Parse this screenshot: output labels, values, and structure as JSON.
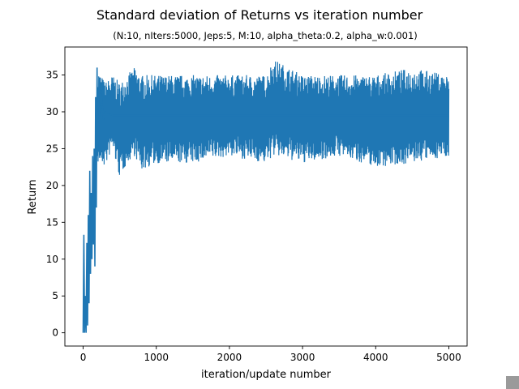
{
  "chart_data": {
    "type": "line",
    "title": "Standard deviation of Returns vs iteration number",
    "subtitle": "(N:10, nIters:5000, Jeps:5, M:10, alpha_theta:0.2, alpha_w:0.001)",
    "xlabel": "iteration/update number",
    "ylabel": "Return",
    "xlim": [
      -250,
      5250
    ],
    "ylim": [
      -1.8,
      38.8
    ],
    "xticks": [
      0,
      1000,
      2000,
      3000,
      4000,
      5000
    ],
    "yticks": [
      0,
      5,
      10,
      15,
      20,
      25,
      30,
      35
    ],
    "grid": false,
    "series": [
      {
        "color": "#1f77b4",
        "x": [
          0,
          10,
          20,
          30,
          40,
          50,
          60,
          70,
          80,
          90,
          100,
          110,
          120,
          130,
          140,
          150,
          160,
          170,
          180,
          190,
          200,
          220,
          240,
          260,
          280,
          300,
          400,
          500,
          600,
          800,
          1000,
          1500,
          2000,
          2500,
          2600,
          3000,
          3500,
          4000,
          4500,
          5000
        ],
        "y": [
          0,
          13.3,
          0,
          5,
          0,
          12.2,
          1,
          16,
          4,
          22,
          8,
          19,
          10,
          24,
          12,
          25,
          9,
          32,
          17,
          36,
          24,
          30,
          33,
          31,
          29,
          30,
          29.5,
          29.5,
          29.5,
          29.5,
          29.5,
          29.5,
          29.5,
          29.5,
          29.5,
          29.5,
          29.5,
          29.5,
          29.5,
          29.5
        ],
        "band_x": [
          200,
          300,
          400,
          500,
          600,
          700,
          800,
          1000,
          1500,
          2000,
          2500,
          2600,
          3000,
          3500,
          4000,
          4500,
          5000
        ],
        "band_upper": [
          36,
          34,
          35,
          34,
          35,
          36,
          35,
          35,
          35,
          35,
          35,
          37.2,
          35,
          35,
          35,
          36,
          35
        ],
        "band_lower": [
          23,
          22.5,
          25,
          21,
          23,
          24,
          22,
          23,
          23,
          24,
          23,
          24,
          23,
          24,
          22.5,
          23,
          24
        ]
      }
    ]
  }
}
